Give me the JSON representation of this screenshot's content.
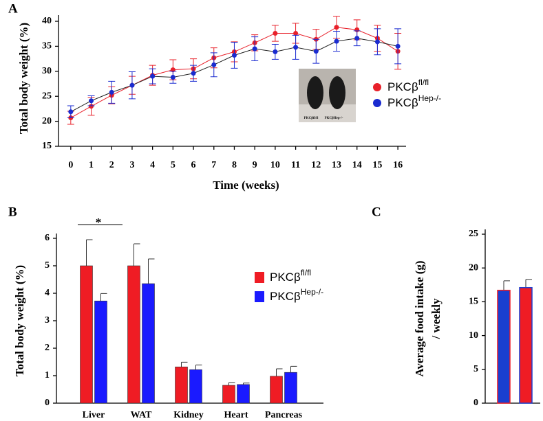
{
  "chart_data": [
    {
      "type": "line",
      "panel": "A",
      "ylabel": "Total body weight (%)",
      "xlabel": "Time (weeks)",
      "x": [
        0,
        1,
        2,
        3,
        4,
        5,
        6,
        7,
        8,
        9,
        10,
        11,
        12,
        13,
        14,
        15,
        16
      ],
      "xlim": [
        -0.6,
        16.4
      ],
      "xticks": [
        0,
        1,
        2,
        3,
        4,
        5,
        6,
        7,
        8,
        9,
        10,
        11,
        12,
        13,
        14,
        15,
        16
      ],
      "ylim": [
        15,
        40
      ],
      "yticks": [
        15,
        20,
        25,
        30,
        35,
        40
      ],
      "series": [
        {
          "name": "PKCβ",
          "name_sup": "fl/fl",
          "color": "#e8202a",
          "values": [
            20.7,
            23.0,
            25.2,
            27.2,
            29.2,
            30.3,
            30.5,
            32.7,
            33.9,
            35.7,
            37.6,
            37.6,
            36.4,
            38.8,
            38.3,
            36.6,
            34.0
          ],
          "errors": [
            1.3,
            1.8,
            1.7,
            1.8,
            2.0,
            2.0,
            2.0,
            2.0,
            2.0,
            1.6,
            1.6,
            2.0,
            2.0,
            2.2,
            2.0,
            2.6,
            3.6
          ]
        },
        {
          "name": "PKCβ",
          "name_sup": "Hep-/-",
          "color": "#1a2bd0",
          "values": [
            21.9,
            24.1,
            25.8,
            27.2,
            29.0,
            28.8,
            29.6,
            31.3,
            33.2,
            34.5,
            33.9,
            34.8,
            34.0,
            36.0,
            36.6,
            35.9,
            35.0
          ],
          "errors": [
            1.2,
            1.0,
            2.2,
            2.7,
            1.5,
            1.2,
            1.6,
            2.4,
            2.6,
            2.4,
            1.5,
            2.4,
            2.4,
            2.0,
            1.5,
            2.6,
            3.5
          ]
        }
      ],
      "inset_labels": [
        "PKCβfl/fl",
        "PKCβHep-/-"
      ]
    },
    {
      "type": "bar",
      "panel": "B",
      "ylabel": "Total body weight (%)",
      "categories": [
        "Liver",
        "WAT",
        "Kidney",
        "Heart",
        "Pancreas"
      ],
      "ylim": [
        0,
        6
      ],
      "yticks": [
        0,
        1,
        2,
        3,
        4,
        5,
        6
      ],
      "series": [
        {
          "name": "PKCβ",
          "name_sup": "fl/fl",
          "color": "#ef1c24",
          "values": [
            5.0,
            5.0,
            1.32,
            0.65,
            0.98
          ],
          "errors": [
            0.95,
            0.8,
            0.17,
            0.1,
            0.27
          ]
        },
        {
          "name": "PKCβ",
          "name_sup": "Hep-/-",
          "color": "#1a1aff",
          "values": [
            3.72,
            4.35,
            1.22,
            0.68,
            1.12
          ],
          "errors": [
            0.27,
            0.9,
            0.17,
            0.05,
            0.22
          ]
        }
      ],
      "annotation": "*"
    },
    {
      "type": "bar",
      "panel": "C",
      "ylabel": [
        "Average food intake (g)",
        "/ weekly"
      ],
      "ylim": [
        0,
        25
      ],
      "yticks": [
        0,
        5,
        10,
        15,
        20,
        25
      ],
      "values": [
        16.7,
        17.1
      ],
      "errors": [
        1.4,
        1.2
      ],
      "colors": [
        "#1a3fd0",
        "#ef1c24"
      ],
      "edge_colors": [
        "#ef1c24",
        "#1a3fd0"
      ]
    }
  ]
}
